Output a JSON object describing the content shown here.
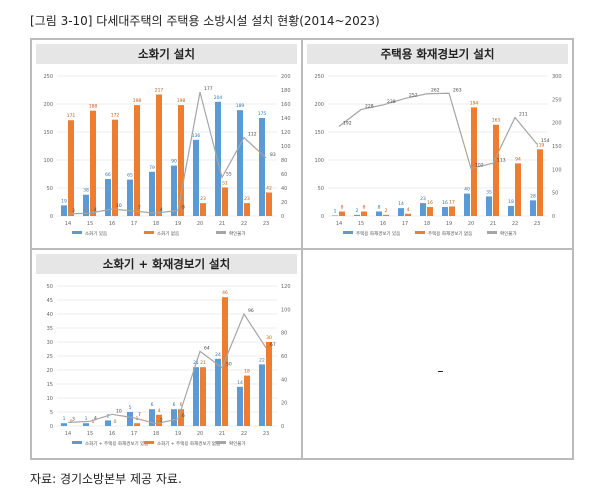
{
  "title": "[그림 3-10] 다세대주택의 주택용 소방시설 설치 현황(2014~2023)",
  "footer": "자료: 경기소방본부 제공 자료.",
  "empty_panel_text": "–",
  "colors": {
    "blue": "#5b9bd5",
    "orange": "#ed7d31",
    "gray": "#a5a5a5"
  },
  "chart_data": [
    {
      "type": "bar",
      "title": "소화기 설치",
      "categories": [
        "14",
        "15",
        "16",
        "17",
        "18",
        "19",
        "20",
        "21",
        "22",
        "23"
      ],
      "ylim": [
        0,
        250
      ],
      "yticks": [
        0,
        50,
        100,
        150,
        200,
        250
      ],
      "y2lim": [
        0,
        200
      ],
      "y2ticks": [
        0,
        20,
        40,
        60,
        80,
        100,
        120,
        140,
        160,
        180,
        200
      ],
      "legend": "bottom",
      "series": [
        {
          "name": "소화기 있음",
          "kind": "bar",
          "axis": "left",
          "values": [
            19,
            38,
            66,
            65,
            79,
            90,
            136,
            204,
            189,
            175
          ]
        },
        {
          "name": "소화기 없음",
          "kind": "bar",
          "axis": "left",
          "values": [
            171,
            188,
            172,
            198,
            217,
            198,
            23,
            51,
            23,
            42
          ]
        },
        {
          "name": "확인불가",
          "kind": "line",
          "axis": "right",
          "values": [
            3,
            4,
            10,
            7,
            4,
            8,
            177,
            55,
            112,
            83
          ]
        }
      ]
    },
    {
      "type": "bar",
      "title": "주택용 화재경보기 설치",
      "categories": [
        "14",
        "15",
        "16",
        "17",
        "18",
        "19",
        "20",
        "21",
        "22",
        "23"
      ],
      "ylim": [
        0,
        250
      ],
      "yticks": [
        0,
        50,
        100,
        150,
        200,
        250
      ],
      "y2lim": [
        0,
        300
      ],
      "y2ticks": [
        0,
        50,
        100,
        150,
        200,
        250,
        300
      ],
      "legend": "bottom",
      "series": [
        {
          "name": "주택용 화재경보기 있음",
          "kind": "bar",
          "axis": "left",
          "values": [
            1,
            2,
            8,
            14,
            23,
            16,
            40,
            35,
            18,
            28
          ]
        },
        {
          "name": "주택용 화재경보기 없음",
          "kind": "bar",
          "axis": "left",
          "values": [
            8,
            8,
            2,
            4,
            16,
            17,
            194,
            163,
            94,
            119
          ]
        },
        {
          "name": "확인불가",
          "kind": "line",
          "axis": "right",
          "values": [
            192,
            228,
            238,
            252,
            262,
            263,
            102,
            113,
            211,
            154
          ]
        }
      ]
    },
    {
      "type": "bar",
      "title": "소화기 + 화재경보기 설치",
      "categories": [
        "14",
        "15",
        "16",
        "17",
        "18",
        "19",
        "20",
        "21",
        "22",
        "23"
      ],
      "ylim": [
        0,
        50
      ],
      "yticks": [
        0,
        5,
        10,
        15,
        20,
        25,
        30,
        35,
        40,
        45,
        50
      ],
      "y2lim": [
        0,
        120
      ],
      "y2ticks": [
        0,
        20,
        40,
        60,
        80,
        100,
        120
      ],
      "legend": "bottom",
      "series": [
        {
          "name": "소화기 + 주택용 화재경보기 있음",
          "kind": "bar",
          "axis": "left",
          "values": [
            1,
            1,
            2,
            5,
            6,
            6,
            21,
            24,
            14,
            22
          ]
        },
        {
          "name": "소화기 + 주택용 화재경보기 없음",
          "kind": "bar",
          "axis": "left",
          "values": [
            0,
            0,
            0,
            1,
            4,
            6,
            21,
            46,
            18,
            30
          ]
        },
        {
          "name": "확인불가",
          "kind": "line",
          "axis": "right",
          "values": [
            3,
            4,
            10,
            7,
            2,
            6,
            64,
            50,
            96,
            67
          ]
        }
      ]
    }
  ]
}
